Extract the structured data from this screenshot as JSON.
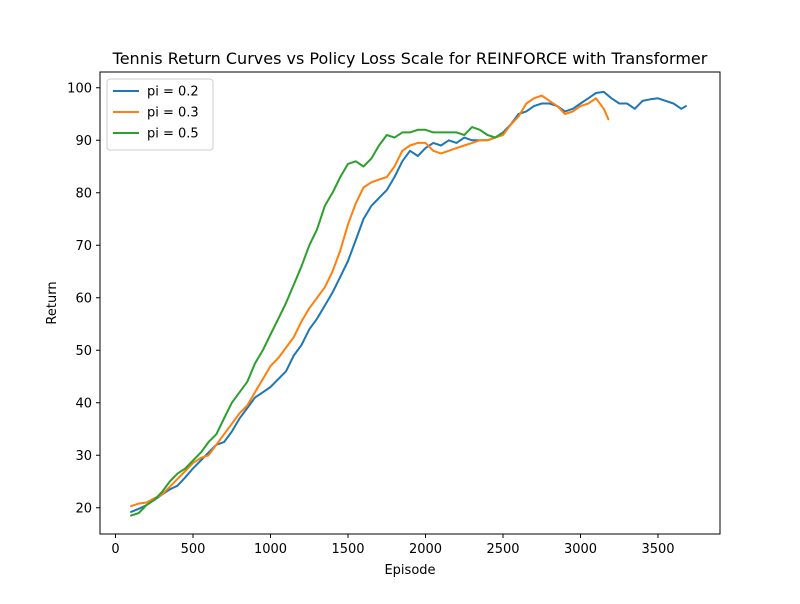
{
  "chart_data": {
    "type": "line",
    "title": "Tennis Return Curves vs Policy Loss Scale for REINFORCE with Transformer",
    "xlabel": "Episode",
    "ylabel": "Return",
    "xlim": [
      -100,
      3900
    ],
    "ylim": [
      15,
      103
    ],
    "x_ticks": [
      0,
      500,
      1000,
      1500,
      2000,
      2500,
      3000,
      3500
    ],
    "x_tick_labels": [
      "0",
      "500",
      "1000",
      "1500",
      "2000",
      "2500",
      "3000",
      "3500"
    ],
    "y_ticks": [
      20,
      30,
      40,
      50,
      60,
      70,
      80,
      90,
      100
    ],
    "y_tick_labels": [
      "20",
      "30",
      "40",
      "50",
      "60",
      "70",
      "80",
      "90",
      "100"
    ],
    "grid": false,
    "legend_position": "upper-left",
    "series": [
      {
        "name": "pi = 0.2",
        "color": "#1f77b4",
        "points": [
          [
            100,
            19.2
          ],
          [
            150,
            19.8
          ],
          [
            200,
            20.5
          ],
          [
            250,
            21.5
          ],
          [
            300,
            22.5
          ],
          [
            350,
            23.5
          ],
          [
            400,
            24.2
          ],
          [
            450,
            25.8
          ],
          [
            500,
            27.5
          ],
          [
            550,
            29
          ],
          [
            600,
            30.5
          ],
          [
            650,
            32
          ],
          [
            700,
            32.5
          ],
          [
            750,
            34.5
          ],
          [
            800,
            37
          ],
          [
            850,
            39
          ],
          [
            900,
            41
          ],
          [
            950,
            42
          ],
          [
            1000,
            43
          ],
          [
            1050,
            44.5
          ],
          [
            1100,
            46
          ],
          [
            1150,
            49
          ],
          [
            1200,
            51
          ],
          [
            1250,
            54
          ],
          [
            1300,
            56
          ],
          [
            1350,
            58.5
          ],
          [
            1400,
            61
          ],
          [
            1450,
            64
          ],
          [
            1500,
            67
          ],
          [
            1550,
            71
          ],
          [
            1600,
            75
          ],
          [
            1650,
            77.5
          ],
          [
            1700,
            79
          ],
          [
            1750,
            80.5
          ],
          [
            1800,
            83
          ],
          [
            1850,
            86
          ],
          [
            1900,
            88
          ],
          [
            1950,
            87
          ],
          [
            2000,
            88.5
          ],
          [
            2050,
            89.5
          ],
          [
            2100,
            89
          ],
          [
            2150,
            90
          ],
          [
            2200,
            89.5
          ],
          [
            2250,
            90.5
          ],
          [
            2300,
            90
          ],
          [
            2350,
            90
          ],
          [
            2400,
            90
          ],
          [
            2450,
            90.5
          ],
          [
            2500,
            91.5
          ],
          [
            2550,
            93
          ],
          [
            2600,
            95
          ],
          [
            2650,
            95.5
          ],
          [
            2700,
            96.5
          ],
          [
            2750,
            97
          ],
          [
            2800,
            97
          ],
          [
            2850,
            96.5
          ],
          [
            2900,
            95.5
          ],
          [
            2950,
            96
          ],
          [
            3000,
            97
          ],
          [
            3050,
            98
          ],
          [
            3100,
            99
          ],
          [
            3150,
            99.2
          ],
          [
            3200,
            98
          ],
          [
            3250,
            97
          ],
          [
            3300,
            97
          ],
          [
            3350,
            96
          ],
          [
            3400,
            97.5
          ],
          [
            3450,
            97.8
          ],
          [
            3500,
            98
          ],
          [
            3550,
            97.5
          ],
          [
            3600,
            97
          ],
          [
            3650,
            96
          ],
          [
            3680,
            96.5
          ]
        ]
      },
      {
        "name": "pi = 0.3",
        "color": "#ff7f0e",
        "points": [
          [
            100,
            20.3
          ],
          [
            150,
            20.8
          ],
          [
            200,
            21
          ],
          [
            250,
            21.8
          ],
          [
            300,
            22.5
          ],
          [
            350,
            24
          ],
          [
            400,
            25.5
          ],
          [
            450,
            27
          ],
          [
            500,
            28.5
          ],
          [
            550,
            29.5
          ],
          [
            600,
            30
          ],
          [
            650,
            32
          ],
          [
            700,
            34
          ],
          [
            750,
            36
          ],
          [
            800,
            38
          ],
          [
            850,
            39.5
          ],
          [
            900,
            42
          ],
          [
            950,
            44.5
          ],
          [
            1000,
            47
          ],
          [
            1050,
            48.5
          ],
          [
            1100,
            50.5
          ],
          [
            1150,
            52.5
          ],
          [
            1200,
            55.5
          ],
          [
            1250,
            58
          ],
          [
            1300,
            60
          ],
          [
            1350,
            62
          ],
          [
            1400,
            65
          ],
          [
            1450,
            69
          ],
          [
            1500,
            74
          ],
          [
            1550,
            78
          ],
          [
            1600,
            81
          ],
          [
            1650,
            82
          ],
          [
            1700,
            82.5
          ],
          [
            1750,
            83
          ],
          [
            1800,
            85
          ],
          [
            1850,
            88
          ],
          [
            1900,
            89
          ],
          [
            1950,
            89.5
          ],
          [
            2000,
            89.5
          ],
          [
            2050,
            88
          ],
          [
            2100,
            87.5
          ],
          [
            2150,
            88
          ],
          [
            2200,
            88.5
          ],
          [
            2250,
            89
          ],
          [
            2300,
            89.5
          ],
          [
            2350,
            90
          ],
          [
            2400,
            90
          ],
          [
            2450,
            90.5
          ],
          [
            2500,
            91
          ],
          [
            2550,
            93
          ],
          [
            2600,
            94.5
          ],
          [
            2650,
            97
          ],
          [
            2700,
            98
          ],
          [
            2750,
            98.5
          ],
          [
            2800,
            97.5
          ],
          [
            2850,
            96.5
          ],
          [
            2900,
            95
          ],
          [
            2950,
            95.5
          ],
          [
            3000,
            96.5
          ],
          [
            3050,
            97
          ],
          [
            3100,
            98
          ],
          [
            3150,
            96
          ],
          [
            3180,
            94
          ]
        ]
      },
      {
        "name": "pi = 0.5",
        "color": "#2ca02c",
        "points": [
          [
            100,
            18.5
          ],
          [
            150,
            19
          ],
          [
            200,
            20.5
          ],
          [
            250,
            21.5
          ],
          [
            300,
            23
          ],
          [
            350,
            25
          ],
          [
            400,
            26.5
          ],
          [
            450,
            27.5
          ],
          [
            500,
            29
          ],
          [
            550,
            30.5
          ],
          [
            600,
            32.5
          ],
          [
            650,
            34
          ],
          [
            700,
            37
          ],
          [
            750,
            40
          ],
          [
            800,
            42
          ],
          [
            850,
            44
          ],
          [
            900,
            47.5
          ],
          [
            950,
            50
          ],
          [
            1000,
            53
          ],
          [
            1050,
            56
          ],
          [
            1100,
            59
          ],
          [
            1150,
            62.5
          ],
          [
            1200,
            66
          ],
          [
            1250,
            70
          ],
          [
            1300,
            73
          ],
          [
            1350,
            77.5
          ],
          [
            1400,
            80
          ],
          [
            1450,
            83
          ],
          [
            1500,
            85.5
          ],
          [
            1550,
            86
          ],
          [
            1600,
            85
          ],
          [
            1650,
            86.5
          ],
          [
            1700,
            89
          ],
          [
            1750,
            91
          ],
          [
            1800,
            90.5
          ],
          [
            1850,
            91.5
          ],
          [
            1900,
            91.5
          ],
          [
            1950,
            92
          ],
          [
            2000,
            92
          ],
          [
            2050,
            91.5
          ],
          [
            2100,
            91.5
          ],
          [
            2150,
            91.5
          ],
          [
            2200,
            91.5
          ],
          [
            2250,
            91
          ],
          [
            2300,
            92.5
          ],
          [
            2350,
            92
          ],
          [
            2400,
            91
          ],
          [
            2450,
            90.5
          ],
          [
            2500,
            91.5
          ]
        ]
      }
    ]
  }
}
